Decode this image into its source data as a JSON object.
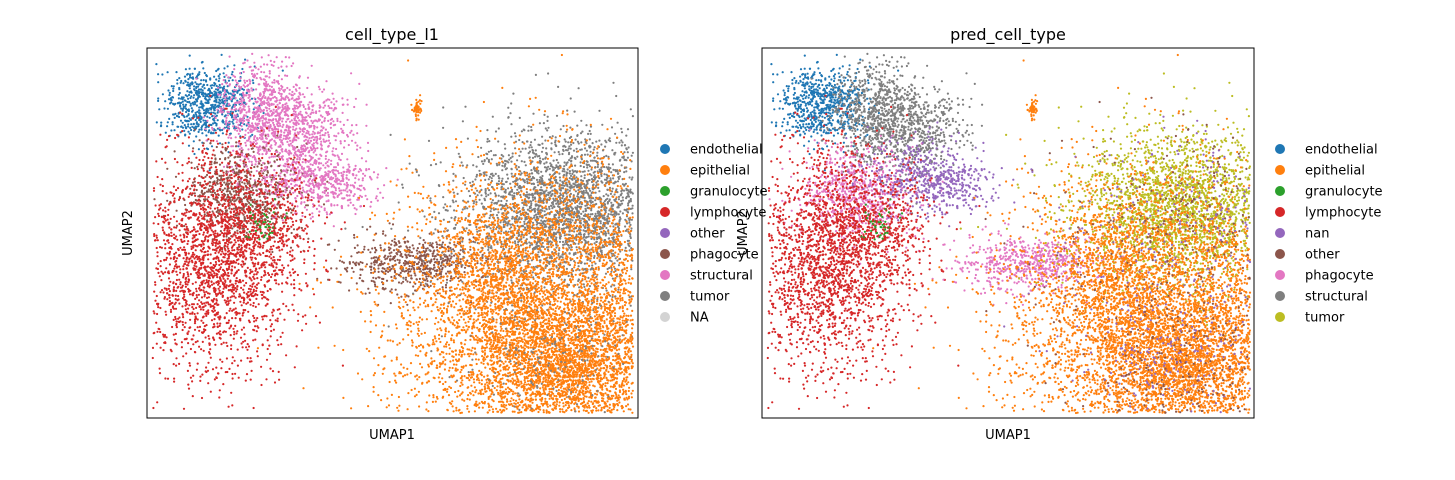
{
  "chart_data": [
    {
      "type": "scatter",
      "title": "cell_type_l1",
      "xlabel": "UMAP1",
      "ylabel": "UMAP2",
      "grid": false,
      "legend_placement": "right-outside",
      "legend": [
        {
          "label": "endothelial",
          "color": "#1f77b4"
        },
        {
          "label": "epithelial",
          "color": "#ff7f0e"
        },
        {
          "label": "granulocyte",
          "color": "#2ca02c"
        },
        {
          "label": "lymphocyte",
          "color": "#d62728"
        },
        {
          "label": "other",
          "color": "#9467bd"
        },
        {
          "label": "phagocyte",
          "color": "#8c564b"
        },
        {
          "label": "structural",
          "color": "#e377c2"
        },
        {
          "label": "tumor",
          "color": "#7f7f7f"
        },
        {
          "label": "NA",
          "color": "#d3d3d3"
        }
      ]
    },
    {
      "type": "scatter",
      "title": "pred_cell_type",
      "xlabel": "UMAP1",
      "ylabel": "UMAP2",
      "grid": false,
      "legend_placement": "right-outside",
      "legend": [
        {
          "label": "endothelial",
          "color": "#1f77b4"
        },
        {
          "label": "epithelial",
          "color": "#ff7f0e"
        },
        {
          "label": "granulocyte",
          "color": "#2ca02c"
        },
        {
          "label": "lymphocyte",
          "color": "#d62728"
        },
        {
          "label": "nan",
          "color": "#9467bd"
        },
        {
          "label": "other",
          "color": "#8c564b"
        },
        {
          "label": "phagocyte",
          "color": "#e377c2"
        },
        {
          "label": "structural",
          "color": "#7f7f7f"
        },
        {
          "label": "tumor",
          "color": "#bcbd22"
        }
      ]
    }
  ]
}
